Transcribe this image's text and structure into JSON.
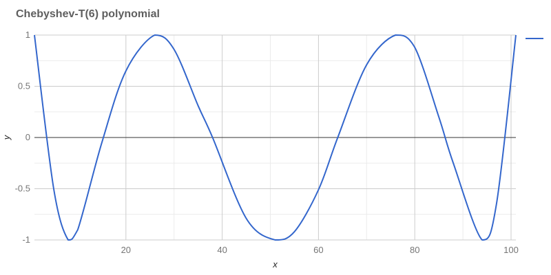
{
  "chart_data": {
    "type": "line",
    "title": "Chebyshev-T(6) polynomial",
    "xlabel": "x",
    "ylabel": "y",
    "xlim": [
      1,
      101
    ],
    "ylim": [
      -1,
      1
    ],
    "x_ticks": [
      20,
      40,
      60,
      80,
      100
    ],
    "y_ticks": [
      -1,
      -0.5,
      0,
      0.5,
      1
    ],
    "x_tick_labels": [
      "20",
      "40",
      "60",
      "80",
      "100"
    ],
    "y_tick_labels": [
      "-1",
      "-0.5",
      "0",
      "0.5",
      "1"
    ],
    "grid": true,
    "legend": "right",
    "series": [
      {
        "color": "#3366cc",
        "x": [
          1,
          5,
          8,
          10,
          15,
          20,
          26,
          30,
          35,
          38,
          45,
          51,
          55,
          60,
          64,
          70,
          76,
          80,
          85,
          88,
          94,
          97,
          101
        ],
        "y": [
          1,
          -0.5,
          -1,
          -0.9,
          -0.05,
          0.65,
          1,
          0.86,
          0.31,
          0,
          -0.79,
          -1,
          -0.92,
          -0.51,
          0,
          0.71,
          1,
          0.88,
          0.2,
          -0.25,
          -1,
          -0.64,
          1
        ]
      }
    ]
  }
}
